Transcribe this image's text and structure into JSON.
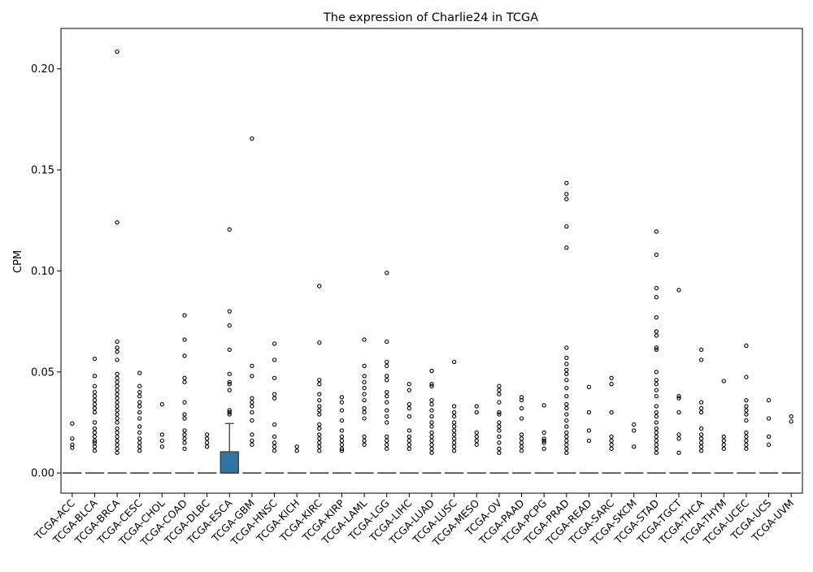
{
  "chart_data": {
    "type": "box",
    "title": "The expression of Charlie24 in TCGA",
    "xlabel": "",
    "ylabel": "CPM",
    "ylim": [
      -0.01,
      0.22
    ],
    "yticks": [
      0.0,
      0.05,
      0.1,
      0.15,
      0.2
    ],
    "ytick_labels": [
      "0.00",
      "0.05",
      "0.10",
      "0.15",
      "0.20"
    ],
    "box_color": "#3274a1",
    "categories": [
      "TCGA-ACC",
      "TCGA-BLCA",
      "TCGA-BRCA",
      "TCGA-CESC",
      "TCGA-CHOL",
      "TCGA-COAD",
      "TCGA-DLBC",
      "TCGA-ESCA",
      "TCGA-GBM",
      "TCGA-HNSC",
      "TCGA-KICH",
      "TCGA-KIRC",
      "TCGA-KIRP",
      "TCGA-LAML",
      "TCGA-LGG",
      "TCGA-LIHC",
      "TCGA-LUAD",
      "TCGA-LUSC",
      "TCGA-MESO",
      "TCGA-OV",
      "TCGA-PAAD",
      "TCGA-PCPG",
      "TCGA-PRAD",
      "TCGA-READ",
      "TCGA-SARC",
      "TCGA-SKCM",
      "TCGA-STAD",
      "TCGA-TGCT",
      "TCGA-THCA",
      "TCGA-THYM",
      "TCGA-UCEC",
      "TCGA-UCS",
      "TCGA-UVM"
    ],
    "boxes": [
      {
        "q1": 0,
        "median": 0,
        "q3": 0,
        "whisker_low": 0,
        "whisker_high": 0
      },
      {
        "q1": 0,
        "median": 0,
        "q3": 0,
        "whisker_low": 0,
        "whisker_high": 0
      },
      {
        "q1": 0,
        "median": 0,
        "q3": 0,
        "whisker_low": 0,
        "whisker_high": 0
      },
      {
        "q1": 0,
        "median": 0,
        "q3": 0,
        "whisker_low": 0,
        "whisker_high": 0
      },
      {
        "q1": 0,
        "median": 0,
        "q3": 0,
        "whisker_low": 0,
        "whisker_high": 0
      },
      {
        "q1": 0,
        "median": 0,
        "q3": 0,
        "whisker_low": 0,
        "whisker_high": 0
      },
      {
        "q1": 0,
        "median": 0,
        "q3": 0,
        "whisker_low": 0,
        "whisker_high": 0
      },
      {
        "q1": 0,
        "median": 0,
        "q3": 0.0105,
        "whisker_low": 0,
        "whisker_high": 0.0245
      },
      {
        "q1": 0,
        "median": 0,
        "q3": 0,
        "whisker_low": 0,
        "whisker_high": 0
      },
      {
        "q1": 0,
        "median": 0,
        "q3": 0,
        "whisker_low": 0,
        "whisker_high": 0
      },
      {
        "q1": 0,
        "median": 0,
        "q3": 0,
        "whisker_low": 0,
        "whisker_high": 0
      },
      {
        "q1": 0,
        "median": 0,
        "q3": 0,
        "whisker_low": 0,
        "whisker_high": 0
      },
      {
        "q1": 0,
        "median": 0,
        "q3": 0,
        "whisker_low": 0,
        "whisker_high": 0
      },
      {
        "q1": 0,
        "median": 0,
        "q3": 0,
        "whisker_low": 0,
        "whisker_high": 0
      },
      {
        "q1": 0,
        "median": 0,
        "q3": 0,
        "whisker_low": 0,
        "whisker_high": 0
      },
      {
        "q1": 0,
        "median": 0,
        "q3": 0,
        "whisker_low": 0,
        "whisker_high": 0
      },
      {
        "q1": 0,
        "median": 0,
        "q3": 0,
        "whisker_low": 0,
        "whisker_high": 0
      },
      {
        "q1": 0,
        "median": 0,
        "q3": 0,
        "whisker_low": 0,
        "whisker_high": 0
      },
      {
        "q1": 0,
        "median": 0,
        "q3": 0,
        "whisker_low": 0,
        "whisker_high": 0
      },
      {
        "q1": 0,
        "median": 0,
        "q3": 0,
        "whisker_low": 0,
        "whisker_high": 0
      },
      {
        "q1": 0,
        "median": 0,
        "q3": 0,
        "whisker_low": 0,
        "whisker_high": 0
      },
      {
        "q1": 0,
        "median": 0,
        "q3": 0,
        "whisker_low": 0,
        "whisker_high": 0
      },
      {
        "q1": 0,
        "median": 0,
        "q3": 0,
        "whisker_low": 0,
        "whisker_high": 0
      },
      {
        "q1": 0,
        "median": 0,
        "q3": 0,
        "whisker_low": 0,
        "whisker_high": 0
      },
      {
        "q1": 0,
        "median": 0,
        "q3": 0,
        "whisker_low": 0,
        "whisker_high": 0
      },
      {
        "q1": 0,
        "median": 0,
        "q3": 0,
        "whisker_low": 0,
        "whisker_high": 0
      },
      {
        "q1": 0,
        "median": 0,
        "q3": 0,
        "whisker_low": 0,
        "whisker_high": 0
      },
      {
        "q1": 0,
        "median": 0,
        "q3": 0,
        "whisker_low": 0,
        "whisker_high": 0
      },
      {
        "q1": 0,
        "median": 0,
        "q3": 0,
        "whisker_low": 0,
        "whisker_high": 0
      },
      {
        "q1": 0,
        "median": 0,
        "q3": 0,
        "whisker_low": 0,
        "whisker_high": 0
      },
      {
        "q1": 0,
        "median": 0,
        "q3": 0,
        "whisker_low": 0,
        "whisker_high": 0
      },
      {
        "q1": 0,
        "median": 0,
        "q3": 0,
        "whisker_low": 0,
        "whisker_high": 0
      },
      {
        "q1": 0,
        "median": 0,
        "q3": 0,
        "whisker_low": 0,
        "whisker_high": 0
      }
    ],
    "outliers": [
      [
        0.0245,
        0.017,
        0.014,
        0.0125
      ],
      [
        0.0565,
        0.048,
        0.043,
        0.04,
        0.038,
        0.036,
        0.034,
        0.032,
        0.03,
        0.025,
        0.022,
        0.02,
        0.018,
        0.016,
        0.015,
        0.013,
        0.011
      ],
      [
        0.2085,
        0.124,
        0.065,
        0.062,
        0.06,
        0.056,
        0.049,
        0.047,
        0.045,
        0.043,
        0.041,
        0.039,
        0.037,
        0.035,
        0.033,
        0.031,
        0.029,
        0.027,
        0.025,
        0.022,
        0.02,
        0.018,
        0.016,
        0.014,
        0.012,
        0.01
      ],
      [
        0.0495,
        0.043,
        0.04,
        0.038,
        0.035,
        0.033,
        0.03,
        0.027,
        0.023,
        0.02,
        0.017,
        0.015,
        0.013,
        0.011
      ],
      [
        0.034,
        0.019,
        0.016,
        0.013
      ],
      [
        0.078,
        0.066,
        0.058,
        0.047,
        0.045,
        0.035,
        0.029,
        0.027,
        0.021,
        0.019,
        0.017,
        0.015,
        0.012
      ],
      [
        0.019,
        0.017,
        0.015,
        0.013
      ],
      [
        0.1205,
        0.08,
        0.073,
        0.061,
        0.049,
        0.045,
        0.044,
        0.041,
        0.031,
        0.03,
        0.029
      ],
      [
        0.1655,
        0.053,
        0.048,
        0.037,
        0.035,
        0.033,
        0.03,
        0.026,
        0.019,
        0.016,
        0.014
      ],
      [
        0.064,
        0.056,
        0.047,
        0.039,
        0.037,
        0.024,
        0.018,
        0.015,
        0.013,
        0.011
      ],
      [
        0.013,
        0.011
      ],
      [
        0.0925,
        0.0645,
        0.046,
        0.044,
        0.039,
        0.036,
        0.033,
        0.031,
        0.029,
        0.024,
        0.022,
        0.019,
        0.017,
        0.015,
        0.013,
        0.011
      ],
      [
        0.0375,
        0.035,
        0.031,
        0.026,
        0.021,
        0.018,
        0.016,
        0.014,
        0.012,
        0.011
      ],
      [
        0.066,
        0.053,
        0.048,
        0.045,
        0.042,
        0.039,
        0.036,
        0.032,
        0.03,
        0.027,
        0.018,
        0.016,
        0.014
      ],
      [
        0.099,
        0.065,
        0.055,
        0.053,
        0.048,
        0.046,
        0.04,
        0.038,
        0.035,
        0.031,
        0.028,
        0.025,
        0.018,
        0.016,
        0.014,
        0.012
      ],
      [
        0.044,
        0.041,
        0.034,
        0.032,
        0.028,
        0.021,
        0.018,
        0.016,
        0.014,
        0.012
      ],
      [
        0.0505,
        0.044,
        0.043,
        0.036,
        0.034,
        0.031,
        0.028,
        0.025,
        0.023,
        0.02,
        0.018,
        0.016,
        0.014,
        0.012,
        0.01
      ],
      [
        0.055,
        0.033,
        0.03,
        0.028,
        0.025,
        0.023,
        0.021,
        0.019,
        0.017,
        0.015,
        0.013,
        0.011
      ],
      [
        0.033,
        0.03,
        0.02,
        0.018,
        0.016,
        0.014
      ],
      [
        0.043,
        0.041,
        0.039,
        0.035,
        0.03,
        0.029,
        0.025,
        0.023,
        0.021,
        0.018,
        0.015,
        0.012,
        0.01
      ],
      [
        0.0375,
        0.036,
        0.032,
        0.027,
        0.019,
        0.017,
        0.015,
        0.013,
        0.011
      ],
      [
        0.0335,
        0.02,
        0.017,
        0.016,
        0.015,
        0.012
      ],
      [
        0.1435,
        0.138,
        0.1355,
        0.122,
        0.1115,
        0.062,
        0.057,
        0.054,
        0.051,
        0.049,
        0.046,
        0.042,
        0.038,
        0.034,
        0.032,
        0.029,
        0.026,
        0.023,
        0.02,
        0.018,
        0.016,
        0.014,
        0.012,
        0.01
      ],
      [
        0.0425,
        0.03,
        0.021,
        0.016
      ],
      [
        0.047,
        0.044,
        0.03,
        0.018,
        0.016,
        0.014,
        0.012
      ],
      [
        0.024,
        0.021,
        0.013
      ],
      [
        0.1195,
        0.108,
        0.0915,
        0.087,
        0.077,
        0.07,
        0.068,
        0.062,
        0.061,
        0.05,
        0.046,
        0.044,
        0.041,
        0.038,
        0.033,
        0.03,
        0.028,
        0.025,
        0.022,
        0.02,
        0.018,
        0.016,
        0.014,
        0.012,
        0.01
      ],
      [
        0.0905,
        0.038,
        0.037,
        0.03,
        0.019,
        0.017,
        0.01
      ],
      [
        0.061,
        0.056,
        0.035,
        0.032,
        0.03,
        0.022,
        0.019,
        0.017,
        0.015,
        0.013,
        0.011
      ],
      [
        0.0455,
        0.018,
        0.016,
        0.014,
        0.012
      ],
      [
        0.063,
        0.0475,
        0.036,
        0.033,
        0.031,
        0.029,
        0.026,
        0.02,
        0.018,
        0.016,
        0.014,
        0.012
      ],
      [
        0.036,
        0.027,
        0.018,
        0.014
      ],
      [
        0.028,
        0.0255
      ]
    ]
  }
}
